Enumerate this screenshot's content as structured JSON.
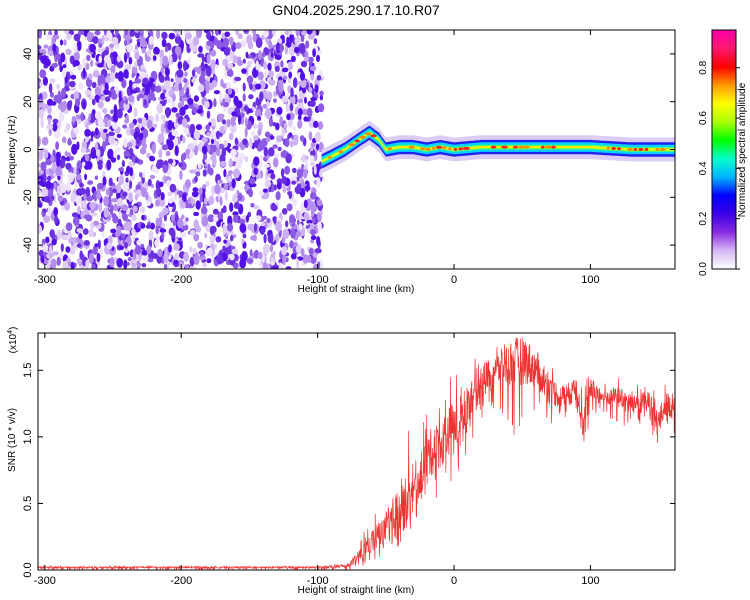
{
  "title": "GN04.2025.290.17.10.R07",
  "chart_data": [
    {
      "type": "heatmap",
      "xlabel": "Height of straight line (km)",
      "ylabel": "Frequency (Hz)",
      "xlim": [
        -305,
        162
      ],
      "ylim": [
        -50,
        50
      ],
      "xticks": [
        -300,
        -200,
        -100,
        0,
        100
      ],
      "yticks": [
        -40,
        -20,
        0,
        20,
        40
      ],
      "noise_region_x": [
        -305,
        -97
      ],
      "signal_trace": {
        "x": [
          -97,
          -90,
          -80,
          -70,
          -62,
          -55,
          -50,
          -40,
          -30,
          -20,
          -10,
          0,
          20,
          50,
          80,
          100,
          130,
          162
        ],
        "freq": [
          -5,
          -3,
          0,
          4,
          7,
          4,
          0,
          1,
          1,
          0,
          1,
          0,
          1,
          1,
          1,
          1,
          0,
          0
        ]
      },
      "colorbar": {
        "label": "Normalized spectral amplitude",
        "ticks": [
          0.0,
          0.2,
          0.4,
          0.6,
          0.8
        ],
        "range": [
          0,
          0.95
        ],
        "colors": [
          "#ffffff",
          "#d6b8f5",
          "#8a2be2",
          "#3a00e6",
          "#0000ff",
          "#00b4ff",
          "#00ffcc",
          "#00ff00",
          "#aaff00",
          "#ffff00",
          "#ff9900",
          "#ff0000",
          "#ff1a6e",
          "#ff00aa"
        ]
      }
    },
    {
      "type": "line",
      "xlabel": "Height of straight line (km)",
      "ylabel": "SNR (10 * v/v)",
      "y_multiplier": "(x10",
      "y_multiplier_exp": "4",
      "xlim": [
        -305,
        162
      ],
      "ylim": [
        0,
        1.78
      ],
      "xticks": [
        -300,
        -200,
        -100,
        0,
        100
      ],
      "yticks": [
        0.0,
        0.5,
        1.0,
        1.5
      ],
      "series": [
        {
          "color": "#ee3333",
          "x": [
            -305,
            -200,
            -100,
            -78,
            -70,
            -60,
            -50,
            -40,
            -35,
            -30,
            -20,
            -10,
            0,
            5,
            10,
            20,
            30,
            40,
            50,
            55,
            60,
            70,
            80,
            90,
            95,
            100,
            110,
            120,
            130,
            140,
            150,
            155,
            162
          ],
          "y": [
            0.02,
            0.02,
            0.02,
            0.03,
            0.1,
            0.22,
            0.32,
            0.45,
            0.5,
            0.55,
            0.85,
            0.95,
            1.1,
            1.05,
            1.25,
            1.45,
            1.5,
            1.55,
            1.58,
            1.55,
            1.5,
            1.35,
            1.3,
            1.35,
            1.1,
            1.35,
            1.3,
            1.3,
            1.25,
            1.3,
            1.1,
            1.25,
            1.2
          ],
          "envelope_high": [
            0.03,
            0.03,
            0.03,
            0.05,
            0.2,
            0.45,
            0.65,
            1.0,
            1.18,
            0.9,
            1.3,
            1.38,
            1.5,
            1.45,
            1.55,
            1.65,
            1.7,
            1.75,
            1.75,
            1.72,
            1.65,
            1.55,
            1.5,
            1.6,
            1.5,
            1.5,
            1.4,
            1.45,
            1.4,
            1.45,
            1.35,
            1.4,
            1.38
          ],
          "envelope_low": [
            0.0,
            0.0,
            0.0,
            0.0,
            0.02,
            0.05,
            0.1,
            0.15,
            0.3,
            0.3,
            0.5,
            0.55,
            0.7,
            0.75,
            0.9,
            1.1,
            1.2,
            1.0,
            0.9,
            0.95,
            1.1,
            1.05,
            1.1,
            1.2,
            0.95,
            1.1,
            1.15,
            1.1,
            1.05,
            1.1,
            0.85,
            1.0,
            1.0
          ]
        }
      ]
    }
  ]
}
